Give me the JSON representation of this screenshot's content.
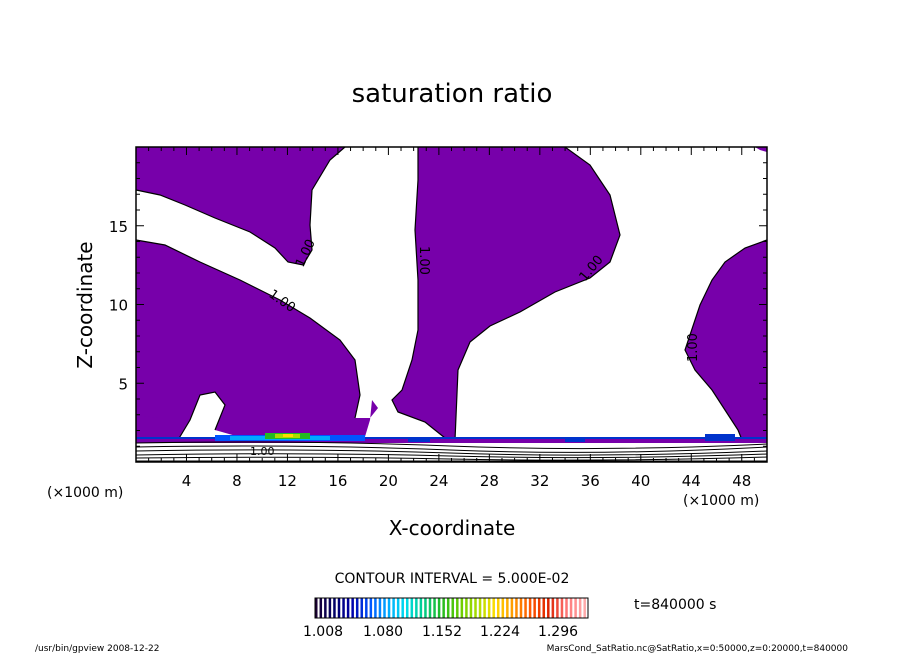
{
  "chart_data": {
    "type": "contour",
    "title": "saturation ratio",
    "xlabel": "X-coordinate",
    "ylabel": "Z-coordinate",
    "x_unit": "(×1000 m)",
    "x_unit_right": "(×1000 m)",
    "xlim": [
      0,
      50
    ],
    "ylim": [
      0,
      20
    ],
    "xticks": [
      "4",
      "8",
      "12",
      "16",
      "20",
      "24",
      "28",
      "32",
      "36",
      "40",
      "44",
      "48"
    ],
    "yticks": [
      "5",
      "10",
      "15"
    ],
    "contour_labels": [
      "1.00",
      "1.00",
      "1.00",
      "1.00",
      "1.00",
      "1.00"
    ],
    "contour_interval_text": "CONTOUR INTERVAL = 5.000E-02",
    "time_text": "t=840000 s",
    "colorbar": {
      "ticks": [
        "1.008",
        "1.080",
        "1.152",
        "1.224",
        "1.296"
      ],
      "colors": [
        "#1a0033",
        "#000066",
        "#0000aa",
        "#0055ff",
        "#00aaff",
        "#00ddee",
        "#00cc88",
        "#22bb22",
        "#66cc00",
        "#aadd00",
        "#ffdd00",
        "#ff9900",
        "#ff5500",
        "#dd2200",
        "#ff7777",
        "#ffaaaa"
      ]
    },
    "fill_color": "#7700aa"
  },
  "footer": {
    "left": "/usr/bin/gpview   2008-12-22",
    "right": "MarsCond_SatRatio.nc@SatRatio,x=0:50000,z=0:20000,t=840000"
  }
}
